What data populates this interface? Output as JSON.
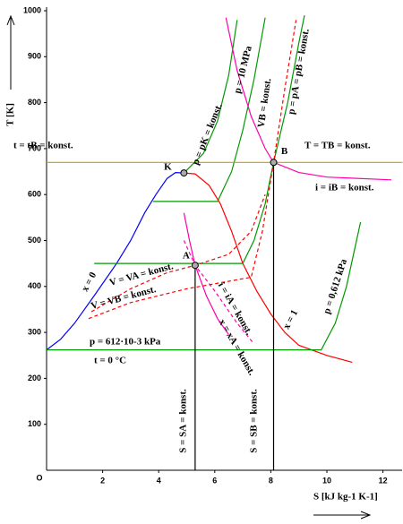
{
  "chart_data": {
    "type": "line",
    "x_label": "S  [kJ kg-1 K-1]",
    "y_label": "T  [K]",
    "origin_label": "O",
    "xlim": [
      0,
      12.7
    ],
    "ylim": [
      0,
      1000
    ],
    "xticks": [
      2,
      4,
      6,
      8,
      10,
      12
    ],
    "yticks": [
      100,
      200,
      300,
      400,
      500,
      600,
      700,
      800,
      900,
      1000
    ],
    "series": [
      {
        "color": "#0000ff",
        "dashed": false,
        "x": [
          0,
          0.5,
          1,
          1.7,
          2.5,
          3,
          3.5,
          3.9,
          4.3,
          4.6,
          4.9
        ],
        "values": [
          262,
          285,
          320,
          380,
          450,
          500,
          560,
          600,
          635,
          648,
          647
        ]
      },
      {
        "color": "#ff0000",
        "dashed": false,
        "x": [
          4.9,
          5.3,
          5.8,
          6.2,
          6.6,
          7,
          7.5,
          8,
          8.5,
          9,
          10,
          10.9
        ],
        "values": [
          647,
          645,
          620,
          580,
          520,
          450,
          390,
          340,
          300,
          272,
          250,
          235
        ]
      },
      {
        "color": "#009900",
        "dashed": false,
        "x": [
          0,
          9.8,
          10.3,
          10.7,
          11.2
        ],
        "values": [
          262,
          262,
          320,
          400,
          540
        ]
      },
      {
        "color": "#009900",
        "dashed": false,
        "x": [
          1.7,
          7,
          7.4,
          7.8,
          8.1,
          8.6,
          9,
          9.2
        ],
        "values": [
          450,
          450,
          500,
          580,
          670,
          800,
          930,
          990
        ]
      },
      {
        "color": "#009900",
        "dashed": false,
        "x": [
          3.8,
          6.1,
          6.6,
          7,
          7.4,
          7.8
        ],
        "values": [
          585,
          585,
          650,
          740,
          850,
          985
        ]
      },
      {
        "color": "#009900",
        "dashed": false,
        "x": [
          4.9,
          5.6,
          6.1,
          6.5,
          6.8
        ],
        "values": [
          647,
          690,
          760,
          860,
          980
        ]
      },
      {
        "color": "#ff00aa",
        "dashed": false,
        "x": [
          6.4,
          6.8,
          7.3,
          7.8,
          8.1,
          9,
          10,
          12.3
        ],
        "values": [
          985,
          870,
          770,
          700,
          670,
          648,
          638,
          632
        ]
      },
      {
        "color": "#ff00aa",
        "dashed": false,
        "x": [
          4.9,
          5.1,
          5.3,
          5.7,
          6.1,
          6.5
        ],
        "values": [
          560,
          500,
          446,
          380,
          330,
          295
        ]
      },
      {
        "color": "#ff00aa",
        "dashed": true,
        "x": [
          4.9,
          5.3,
          6,
          6.8,
          7.4
        ],
        "values": [
          500,
          446,
          390,
          320,
          275
        ]
      },
      {
        "color": "#ff0000",
        "dashed": true,
        "x": [
          1.6,
          3,
          4.3,
          5.3,
          6.5,
          7.3,
          7.8
        ],
        "values": [
          345,
          395,
          430,
          446,
          470,
          520,
          600
        ]
      },
      {
        "color": "#ff0000",
        "dashed": true,
        "x": [
          1.5,
          3,
          5,
          7.3,
          7.7,
          8.1,
          8.5,
          8.9
        ],
        "values": [
          330,
          365,
          395,
          420,
          520,
          670,
          830,
          980
        ]
      },
      {
        "color": "#c8a000",
        "dashed": false,
        "x": [
          0,
          12.7
        ],
        "values": [
          670,
          670
        ]
      },
      {
        "color": "#000000",
        "dashed": false,
        "x": [
          5.3,
          5.3
        ],
        "values": [
          0,
          446
        ]
      },
      {
        "color": "#000000",
        "dashed": false,
        "x": [
          8.1,
          8.1
        ],
        "values": [
          0,
          670
        ]
      }
    ],
    "points": {
      "labels": [
        "K",
        "A",
        "B"
      ],
      "x": [
        4.9,
        5.3,
        8.1
      ],
      "values": [
        647,
        446,
        670
      ]
    },
    "annotations": [
      "t = tB = konst.",
      "T = TB = konst.",
      "i = iB = konst.",
      "p = 612·10-3 kPa",
      "t = 0 °C",
      "x = 0",
      "V = VA = konst.",
      "V = VB = konst.",
      "i = iA = konst.",
      "x = xA = konst.",
      "x = 1",
      "p = 0,612 kPa",
      "p = pK = konst.",
      "p = 10 MPa",
      "VB = konst.",
      "p = pA = pB = konst.",
      "S = SA = konst.",
      "S = SB = konst."
    ]
  }
}
